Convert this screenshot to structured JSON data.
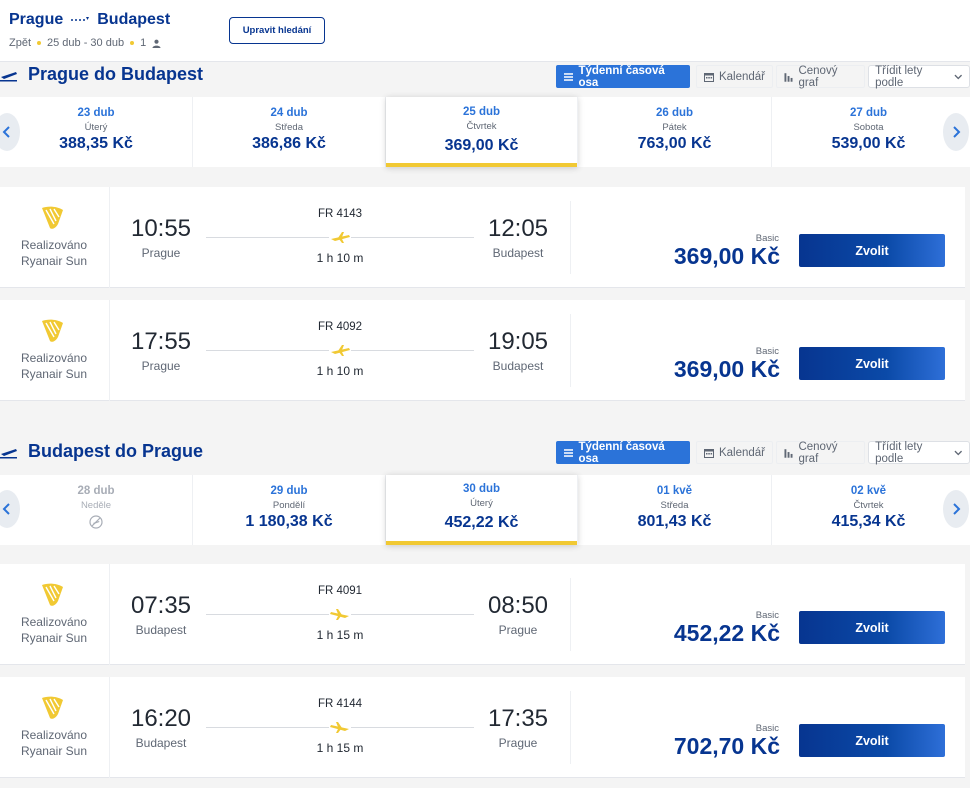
{
  "header": {
    "origin": "Prague",
    "destination": "Budapest",
    "back": "Zpět",
    "dates": "25 dub - 30 dub",
    "passengers": "1",
    "edit_label": "Upravit hledání"
  },
  "controls": {
    "weekly_label": "Týdenní časová osa",
    "calendar_label": "Kalendář",
    "price_chart_label": "Cenový graf",
    "sort_label": "Třídit lety podle"
  },
  "sections": [
    {
      "title": "Prague do Budapest",
      "days": [
        {
          "date": "23 dub",
          "weekday": "Úterý",
          "price": "388,35 Kč"
        },
        {
          "date": "24 dub",
          "weekday": "Středa",
          "price": "386,86 Kč"
        },
        {
          "date": "25 dub",
          "weekday": "Čtvrtek",
          "price": "369,00 Kč"
        },
        {
          "date": "26 dub",
          "weekday": "Pátek",
          "price": "763,00 Kč"
        },
        {
          "date": "27 dub",
          "weekday": "Sobota",
          "price": "539,00 Kč"
        }
      ],
      "flights": [
        {
          "operator_line1": "Realizováno",
          "operator_line2": "Ryanair Sun",
          "dep_time": "10:55",
          "dep_city": "Prague",
          "flight_no": "FR 4143",
          "duration": "1 h 10 m",
          "arr_time": "12:05",
          "arr_city": "Budapest",
          "fare": "Basic",
          "price": "369,00 Kč",
          "select_label": "Zvolit"
        },
        {
          "operator_line1": "Realizováno",
          "operator_line2": "Ryanair Sun",
          "dep_time": "17:55",
          "dep_city": "Prague",
          "flight_no": "FR 4092",
          "duration": "1 h 10 m",
          "arr_time": "19:05",
          "arr_city": "Budapest",
          "fare": "Basic",
          "price": "369,00 Kč",
          "select_label": "Zvolit"
        }
      ]
    },
    {
      "title": "Budapest do Prague",
      "days": [
        {
          "date": "28 dub",
          "weekday": "Neděle",
          "price": ""
        },
        {
          "date": "29 dub",
          "weekday": "Pondělí",
          "price": "1 180,38 Kč"
        },
        {
          "date": "30 dub",
          "weekday": "Úterý",
          "price": "452,22 Kč"
        },
        {
          "date": "01 kvě",
          "weekday": "Středa",
          "price": "801,43 Kč"
        },
        {
          "date": "02 kvě",
          "weekday": "Čtvrtek",
          "price": "415,34 Kč"
        }
      ],
      "flights": [
        {
          "operator_line1": "Realizováno",
          "operator_line2": "Ryanair Sun",
          "dep_time": "07:35",
          "dep_city": "Budapest",
          "flight_no": "FR 4091",
          "duration": "1 h 15 m",
          "arr_time": "08:50",
          "arr_city": "Prague",
          "fare": "Basic",
          "price": "452,22 Kč",
          "select_label": "Zvolit"
        },
        {
          "operator_line1": "Realizováno",
          "operator_line2": "Ryanair Sun",
          "dep_time": "16:20",
          "dep_city": "Budapest",
          "flight_no": "FR 4144",
          "duration": "1 h 15 m",
          "arr_time": "17:35",
          "arr_city": "Prague",
          "fare": "Basic",
          "price": "702,70 Kč",
          "select_label": "Zvolit"
        }
      ]
    }
  ],
  "colors": {
    "brand": "#073590",
    "accent_yellow": "#f1c933",
    "link_blue": "#2b73d9"
  }
}
